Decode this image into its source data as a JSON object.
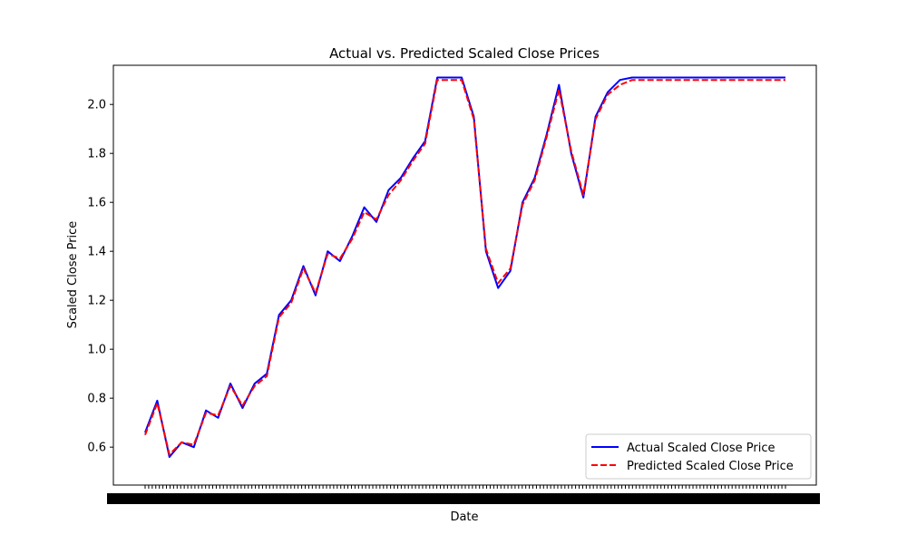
{
  "chart_data": {
    "type": "line",
    "title": "Actual vs. Predicted Scaled Close Prices",
    "xlabel": "Date",
    "ylabel": "Scaled Close Price",
    "ylim": [
      0.445,
      2.16
    ],
    "yticks": [
      0.6,
      0.8,
      1.0,
      1.2,
      1.4,
      1.6,
      1.8,
      2.0
    ],
    "ytick_labels": [
      "0.6",
      "0.8",
      "1.0",
      "1.2",
      "1.4",
      "1.6",
      "1.8",
      "2.0"
    ],
    "x_index_range": [
      0,
      263
    ],
    "x_tick_labels_note": "dense overlapping date labels (illegible)",
    "grid": false,
    "legend": {
      "position": "lower-right"
    },
    "x": [
      0,
      5,
      10,
      15,
      20,
      25,
      30,
      35,
      40,
      45,
      50,
      55,
      60,
      65,
      70,
      75,
      80,
      85,
      90,
      95,
      100,
      105,
      110,
      115,
      120,
      125,
      130,
      135,
      140,
      145,
      150,
      155,
      160,
      165,
      170,
      175,
      180,
      185,
      190,
      195,
      200,
      205,
      210,
      215,
      220,
      225,
      230,
      235,
      240,
      245,
      250,
      255,
      263
    ],
    "series": [
      {
        "name": "Actual Scaled Close Price",
        "color": "#0000ff",
        "style": "solid",
        "values": [
          0.66,
          0.79,
          0.56,
          0.62,
          0.6,
          0.75,
          0.72,
          0.86,
          0.76,
          0.86,
          0.9,
          1.14,
          1.2,
          1.34,
          1.22,
          1.4,
          1.36,
          1.46,
          1.58,
          1.52,
          1.65,
          1.7,
          1.78,
          1.85,
          2.11,
          2.11,
          2.11,
          1.95,
          1.4,
          1.25,
          1.32,
          1.6,
          1.7,
          1.88,
          2.08,
          1.8,
          1.62,
          1.95,
          2.05,
          2.1,
          2.11,
          2.11,
          2.11,
          2.11,
          2.11,
          2.11,
          2.11,
          2.11,
          2.11,
          2.11,
          2.11,
          2.11,
          2.11
        ]
      },
      {
        "name": "Predicted Scaled Close Price",
        "color": "#ff0000",
        "style": "dashed",
        "values": [
          0.65,
          0.78,
          0.57,
          0.62,
          0.61,
          0.74,
          0.73,
          0.85,
          0.77,
          0.85,
          0.89,
          1.13,
          1.19,
          1.33,
          1.23,
          1.39,
          1.37,
          1.45,
          1.56,
          1.53,
          1.63,
          1.69,
          1.77,
          1.84,
          2.1,
          2.1,
          2.1,
          1.94,
          1.41,
          1.27,
          1.33,
          1.59,
          1.69,
          1.87,
          2.06,
          1.81,
          1.63,
          1.94,
          2.04,
          2.08,
          2.1,
          2.1,
          2.1,
          2.1,
          2.1,
          2.1,
          2.1,
          2.1,
          2.1,
          2.1,
          2.1,
          2.1,
          2.1
        ]
      }
    ]
  }
}
